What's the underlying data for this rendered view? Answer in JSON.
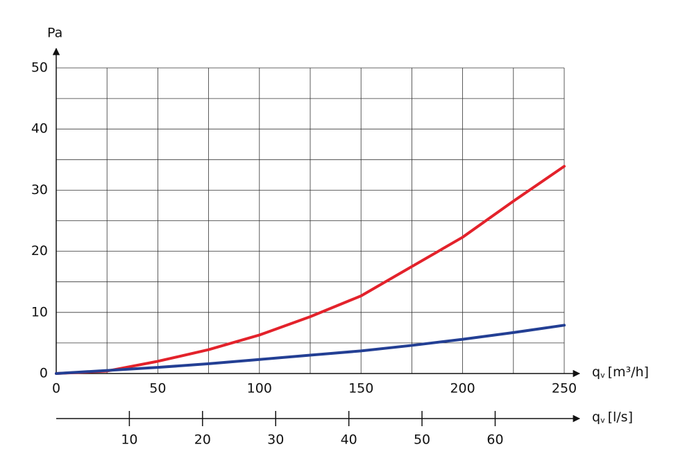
{
  "chart_data": {
    "type": "line",
    "y_label": "Pa",
    "x_label": {
      "symbol": "q",
      "subscript": "v",
      "unit": "[m³/h]"
    },
    "x2_label": {
      "symbol": "q",
      "subscript": "v",
      "unit": "[l/s]"
    },
    "x": [
      0,
      25,
      50,
      75,
      100,
      125,
      150,
      175,
      200,
      225,
      250
    ],
    "series": [
      {
        "color": "#e3222b",
        "values": [
          0,
          0.4,
          2.0,
          3.9,
          6.3,
          9.3,
          12.7,
          17.5,
          22.3,
          28.2,
          33.9
        ]
      },
      {
        "color": "#233f94",
        "values": [
          0,
          0.5,
          1.0,
          1.6,
          2.3,
          3.0,
          3.7,
          4.6,
          5.6,
          6.7,
          7.9
        ]
      }
    ],
    "xlim": [
      0,
      250
    ],
    "xticks": [
      0,
      50,
      100,
      150,
      200,
      250
    ],
    "ylim": [
      0,
      50
    ],
    "yticks": [
      0,
      10,
      20,
      30,
      40,
      50
    ],
    "x2lim": [
      0,
      69.44
    ],
    "x2ticks": [
      10,
      20,
      30,
      40,
      50,
      60
    ],
    "grid": true
  }
}
